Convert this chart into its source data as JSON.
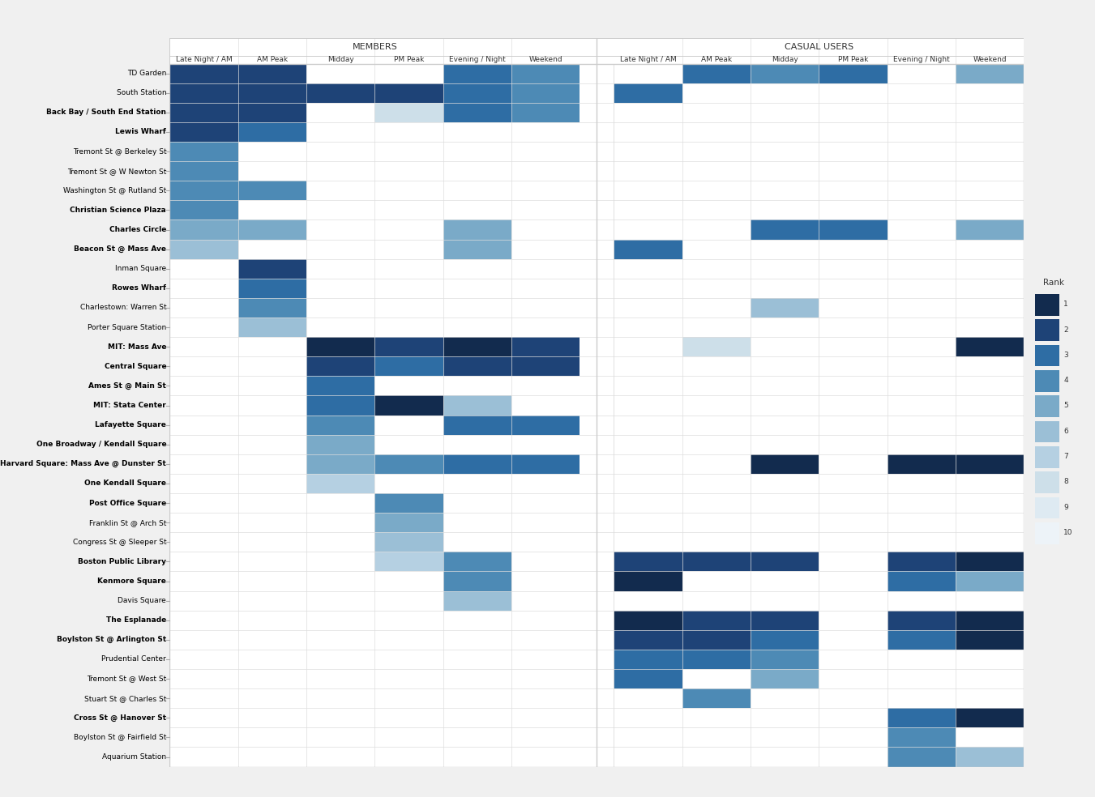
{
  "stations": [
    "TD Garden",
    "South Station",
    "Back Bay / South End Station",
    "Lewis Wharf",
    "Tremont St @ Berkeley St",
    "Tremont St @ W Newton St",
    "Washington St @ Rutland St",
    "Christian Science Plaza",
    "Charles Circle",
    "Beacon St @ Mass Ave",
    "Inman Square",
    "Rowes Wharf",
    "Charlestown: Warren St",
    "Porter Square Station",
    "MIT: Mass Ave",
    "Central Square",
    "Ames St @ Main St",
    "MIT: Stata Center",
    "Lafayette Square",
    "One Broadway / Kendall Square",
    "Harvard Square: Mass Ave @ Dunster St",
    "One Kendall Square",
    "Post Office Square",
    "Franklin St @ Arch St",
    "Congress St @ Sleeper St",
    "Boston Public Library",
    "Kenmore Square",
    "Davis Square",
    "The Esplanade",
    "Boylston St @ Arlington St",
    "Prudential Center",
    "Tremont St @ West St",
    "Stuart St @ Charles St",
    "Cross St @ Hanover St",
    "Boylston St @ Fairfield St",
    "Aquarium Station"
  ],
  "bold_stations": [
    "Back Bay / South End Station",
    "Lewis Wharf",
    "Christian Science Plaza",
    "Charles Circle",
    "Beacon St @ Mass Ave",
    "Rowes Wharf",
    "MIT: Mass Ave",
    "Central Square",
    "Ames St @ Main St",
    "MIT: Stata Center",
    "Lafayette Square",
    "One Broadway / Kendall Square",
    "Harvard Square: Mass Ave @ Dunster St",
    "One Kendall Square",
    "Post Office Square",
    "Boston Public Library",
    "Kenmore Square",
    "The Esplanade",
    "Boylston St @ Arlington St",
    "Cross St @ Hanover St"
  ],
  "col_labels": [
    "Late Night / AM",
    "AM Peak",
    "Midday",
    "PM Peak",
    "Evening / Night",
    "Weekend",
    "Late Night / AM",
    "AM Peak",
    "Midday",
    "PM Peak",
    "Evening / Night",
    "Weekend"
  ],
  "rank_colors": [
    "#122b4e",
    "#1e4377",
    "#2e6da4",
    "#4d8ab5",
    "#7aaac8",
    "#9bbfd6",
    "#b5d0e2",
    "#cddfe9",
    "#deeaf2",
    "#edf3f8"
  ],
  "rank_matrix": [
    [
      2,
      2,
      null,
      null,
      3,
      4,
      null,
      3,
      4,
      3,
      null,
      5
    ],
    [
      2,
      2,
      2,
      2,
      3,
      4,
      3,
      null,
      null,
      null,
      null,
      null
    ],
    [
      2,
      2,
      null,
      8,
      3,
      4,
      null,
      null,
      null,
      null,
      null,
      null
    ],
    [
      2,
      3,
      null,
      null,
      null,
      null,
      null,
      null,
      null,
      null,
      null,
      null
    ],
    [
      4,
      null,
      null,
      null,
      null,
      null,
      null,
      null,
      null,
      null,
      null,
      null
    ],
    [
      4,
      null,
      null,
      null,
      null,
      null,
      null,
      null,
      null,
      null,
      null,
      null
    ],
    [
      4,
      4,
      null,
      null,
      null,
      null,
      null,
      null,
      null,
      null,
      null,
      null
    ],
    [
      4,
      null,
      null,
      null,
      null,
      null,
      null,
      null,
      null,
      null,
      null,
      null
    ],
    [
      5,
      5,
      null,
      null,
      5,
      null,
      null,
      null,
      3,
      3,
      null,
      5
    ],
    [
      6,
      null,
      null,
      null,
      5,
      null,
      3,
      null,
      null,
      null,
      null,
      null
    ],
    [
      null,
      2,
      null,
      null,
      null,
      null,
      null,
      null,
      null,
      null,
      null,
      null
    ],
    [
      null,
      3,
      null,
      null,
      null,
      null,
      null,
      null,
      null,
      null,
      null,
      null
    ],
    [
      null,
      4,
      null,
      null,
      null,
      null,
      null,
      null,
      6,
      null,
      null,
      null
    ],
    [
      null,
      6,
      null,
      null,
      null,
      null,
      null,
      null,
      null,
      null,
      null,
      null
    ],
    [
      null,
      null,
      1,
      2,
      1,
      2,
      null,
      8,
      null,
      null,
      null,
      1
    ],
    [
      null,
      null,
      2,
      3,
      2,
      2,
      null,
      null,
      null,
      null,
      null,
      null
    ],
    [
      null,
      null,
      3,
      null,
      null,
      null,
      null,
      null,
      null,
      null,
      null,
      null
    ],
    [
      null,
      null,
      3,
      1,
      6,
      null,
      null,
      null,
      null,
      null,
      null,
      null
    ],
    [
      null,
      null,
      4,
      null,
      3,
      3,
      null,
      null,
      null,
      null,
      null,
      null
    ],
    [
      null,
      null,
      5,
      null,
      null,
      null,
      null,
      null,
      null,
      null,
      null,
      null
    ],
    [
      null,
      null,
      5,
      4,
      3,
      3,
      null,
      null,
      1,
      null,
      1,
      1
    ],
    [
      null,
      null,
      7,
      null,
      null,
      null,
      null,
      null,
      null,
      null,
      null,
      null
    ],
    [
      null,
      null,
      null,
      4,
      null,
      null,
      null,
      null,
      null,
      null,
      null,
      null
    ],
    [
      null,
      null,
      null,
      5,
      null,
      null,
      null,
      null,
      null,
      null,
      null,
      null
    ],
    [
      null,
      null,
      null,
      6,
      null,
      null,
      null,
      null,
      null,
      null,
      null,
      null
    ],
    [
      null,
      null,
      null,
      7,
      4,
      null,
      2,
      2,
      2,
      null,
      2,
      1
    ],
    [
      null,
      null,
      null,
      null,
      4,
      null,
      1,
      null,
      null,
      null,
      3,
      5
    ],
    [
      null,
      null,
      null,
      null,
      6,
      null,
      null,
      null,
      null,
      null,
      null,
      null
    ],
    [
      null,
      null,
      null,
      null,
      null,
      null,
      1,
      2,
      2,
      null,
      2,
      1
    ],
    [
      null,
      null,
      null,
      null,
      null,
      null,
      2,
      2,
      3,
      null,
      3,
      1
    ],
    [
      null,
      null,
      null,
      null,
      null,
      null,
      3,
      3,
      4,
      null,
      null,
      null
    ],
    [
      null,
      null,
      null,
      null,
      null,
      null,
      3,
      null,
      5,
      null,
      null,
      null
    ],
    [
      null,
      null,
      null,
      null,
      null,
      null,
      null,
      4,
      null,
      null,
      null,
      null
    ],
    [
      null,
      null,
      null,
      null,
      null,
      null,
      null,
      null,
      null,
      null,
      3,
      1
    ],
    [
      null,
      null,
      null,
      null,
      null,
      null,
      null,
      null,
      null,
      null,
      4,
      null
    ],
    [
      null,
      null,
      null,
      null,
      null,
      null,
      null,
      null,
      null,
      null,
      4,
      6
    ]
  ],
  "member_header": "MEMBERS",
  "casual_header": "CASUAL USERS",
  "legend_title": "Rank",
  "fig_bg": "#f0f0f0",
  "chart_bg": "#ffffff",
  "border_color": "#cccccc",
  "grid_color": "#dddddd",
  "text_color": "#333333",
  "header_sep_color": "#999999"
}
